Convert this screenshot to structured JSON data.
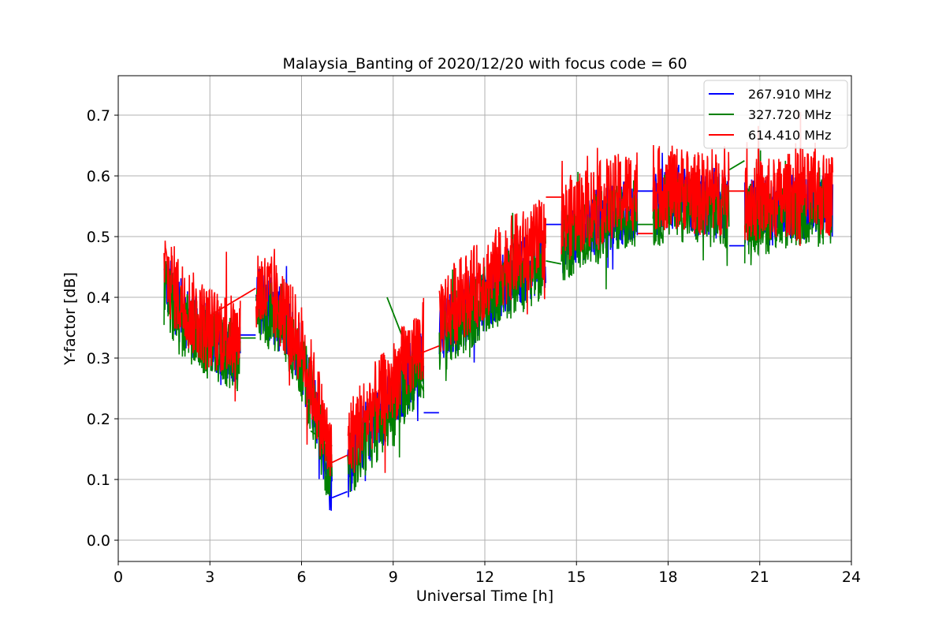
{
  "chart_data": {
    "type": "line",
    "title": "Malaysia_Banting of 2020/12/20 with focus code = 60",
    "xlabel": "Universal Time [h]",
    "ylabel": "Y-factor [dB]",
    "xlim": [
      0,
      24
    ],
    "ylim": [
      -0.035,
      0.765
    ],
    "xticks": [
      0,
      3,
      6,
      9,
      12,
      15,
      18,
      21,
      24
    ],
    "yticks": [
      0.0,
      0.1,
      0.2,
      0.3,
      0.4,
      0.5,
      0.6,
      0.7
    ],
    "xtick_labels": [
      "0",
      "3",
      "6",
      "9",
      "12",
      "15",
      "18",
      "21",
      "24"
    ],
    "ytick_labels": [
      "0.0",
      "0.1",
      "0.2",
      "0.3",
      "0.4",
      "0.5",
      "0.6",
      "0.7"
    ],
    "grid": true,
    "legend_position": "top-right",
    "series": [
      {
        "name": "267.910 MHz",
        "color": "#0000ff",
        "amplitude": 0.055,
        "x": [
          1.5,
          2.0,
          2.5,
          3.0,
          3.5,
          4.0,
          4.5,
          5.0,
          5.5,
          6.0,
          6.5,
          7.0,
          7.5,
          8.0,
          8.5,
          9.0,
          9.5,
          10.0,
          10.5,
          11.0,
          11.5,
          12.0,
          12.5,
          13.0,
          13.5,
          14.0,
          14.5,
          15.0,
          15.5,
          16.0,
          16.5,
          17.0,
          17.5,
          18.0,
          18.5,
          19.0,
          19.5,
          20.0,
          20.5,
          21.0,
          21.5,
          22.0,
          22.5,
          23.0,
          23.4
        ],
        "y": [
          0.43,
          0.38,
          0.35,
          0.33,
          0.32,
          0.31,
          0.4,
          0.38,
          0.35,
          0.3,
          0.21,
          0.08,
          0.12,
          0.17,
          0.2,
          0.23,
          0.27,
          0.3,
          0.34,
          0.36,
          0.38,
          0.4,
          0.42,
          0.44,
          0.45,
          0.47,
          0.49,
          0.51,
          0.52,
          0.53,
          0.54,
          0.55,
          0.55,
          0.56,
          0.56,
          0.55,
          0.55,
          0.55,
          0.54,
          0.54,
          0.54,
          0.55,
          0.55,
          0.55,
          0.55
        ],
        "gap_connectors": [
          [
            4.0,
            0.338,
            4.5,
            0.338
          ],
          [
            7.0,
            0.07,
            7.5,
            0.08
          ],
          [
            10.0,
            0.21,
            10.5,
            0.21
          ],
          [
            14.0,
            0.52,
            14.5,
            0.52
          ],
          [
            17.0,
            0.575,
            17.5,
            0.575
          ],
          [
            20.0,
            0.485,
            20.5,
            0.485
          ]
        ]
      },
      {
        "name": "327.720 MHz",
        "color": "#008000",
        "amplitude": 0.06,
        "x": [
          1.5,
          2.0,
          2.5,
          3.0,
          3.5,
          4.0,
          4.5,
          5.0,
          5.5,
          6.0,
          6.5,
          7.0,
          7.5,
          8.0,
          8.5,
          9.0,
          9.5,
          10.0,
          10.5,
          11.0,
          11.5,
          12.0,
          12.5,
          13.0,
          13.5,
          14.0,
          14.5,
          15.0,
          15.5,
          16.0,
          16.5,
          17.0,
          17.5,
          18.0,
          18.5,
          19.0,
          19.5,
          20.0,
          20.5,
          21.0,
          21.5,
          22.0,
          22.5,
          23.0,
          23.4
        ],
        "y": [
          0.41,
          0.36,
          0.34,
          0.32,
          0.31,
          0.3,
          0.39,
          0.37,
          0.34,
          0.29,
          0.2,
          0.09,
          0.12,
          0.16,
          0.19,
          0.22,
          0.26,
          0.29,
          0.33,
          0.35,
          0.37,
          0.39,
          0.41,
          0.43,
          0.44,
          0.46,
          0.48,
          0.5,
          0.51,
          0.52,
          0.53,
          0.54,
          0.54,
          0.55,
          0.55,
          0.54,
          0.54,
          0.54,
          0.53,
          0.53,
          0.53,
          0.54,
          0.54,
          0.54,
          0.54
        ],
        "gap_connectors": [
          [
            4.0,
            0.333,
            4.5,
            0.333
          ],
          [
            6.3,
            0.18,
            7.0,
            0.155
          ],
          [
            8.8,
            0.4,
            10.0,
            0.245
          ],
          [
            14.0,
            0.46,
            14.5,
            0.455
          ],
          [
            17.0,
            0.52,
            17.5,
            0.52
          ],
          [
            20.0,
            0.61,
            20.5,
            0.625
          ]
        ]
      },
      {
        "name": "614.410 MHz",
        "color": "#ff0000",
        "amplitude": 0.07,
        "x": [
          1.5,
          2.0,
          2.5,
          3.0,
          3.5,
          4.0,
          4.5,
          5.0,
          5.5,
          6.0,
          6.5,
          7.0,
          7.5,
          8.0,
          8.5,
          9.0,
          9.5,
          10.0,
          10.5,
          11.0,
          11.5,
          12.0,
          12.5,
          13.0,
          13.5,
          14.0,
          14.5,
          15.0,
          15.5,
          16.0,
          16.5,
          17.0,
          17.5,
          18.0,
          18.5,
          19.0,
          19.5,
          20.0,
          20.5,
          21.0,
          21.5,
          22.0,
          22.5,
          23.0,
          23.4
        ],
        "y": [
          0.45,
          0.4,
          0.37,
          0.35,
          0.34,
          0.33,
          0.42,
          0.4,
          0.37,
          0.32,
          0.23,
          0.13,
          0.16,
          0.2,
          0.23,
          0.26,
          0.3,
          0.33,
          0.37,
          0.39,
          0.41,
          0.43,
          0.45,
          0.47,
          0.48,
          0.5,
          0.52,
          0.54,
          0.55,
          0.56,
          0.57,
          0.58,
          0.58,
          0.58,
          0.58,
          0.57,
          0.57,
          0.57,
          0.56,
          0.56,
          0.56,
          0.57,
          0.57,
          0.57,
          0.57
        ],
        "gap_connectors": [
          [
            3.0,
            0.37,
            4.5,
            0.415
          ],
          [
            7.0,
            0.128,
            7.5,
            0.14
          ],
          [
            9.0,
            0.29,
            10.5,
            0.32
          ],
          [
            14.0,
            0.565,
            14.5,
            0.565
          ],
          [
            17.0,
            0.505,
            17.5,
            0.505
          ],
          [
            20.0,
            0.575,
            20.5,
            0.575
          ]
        ]
      }
    ]
  }
}
